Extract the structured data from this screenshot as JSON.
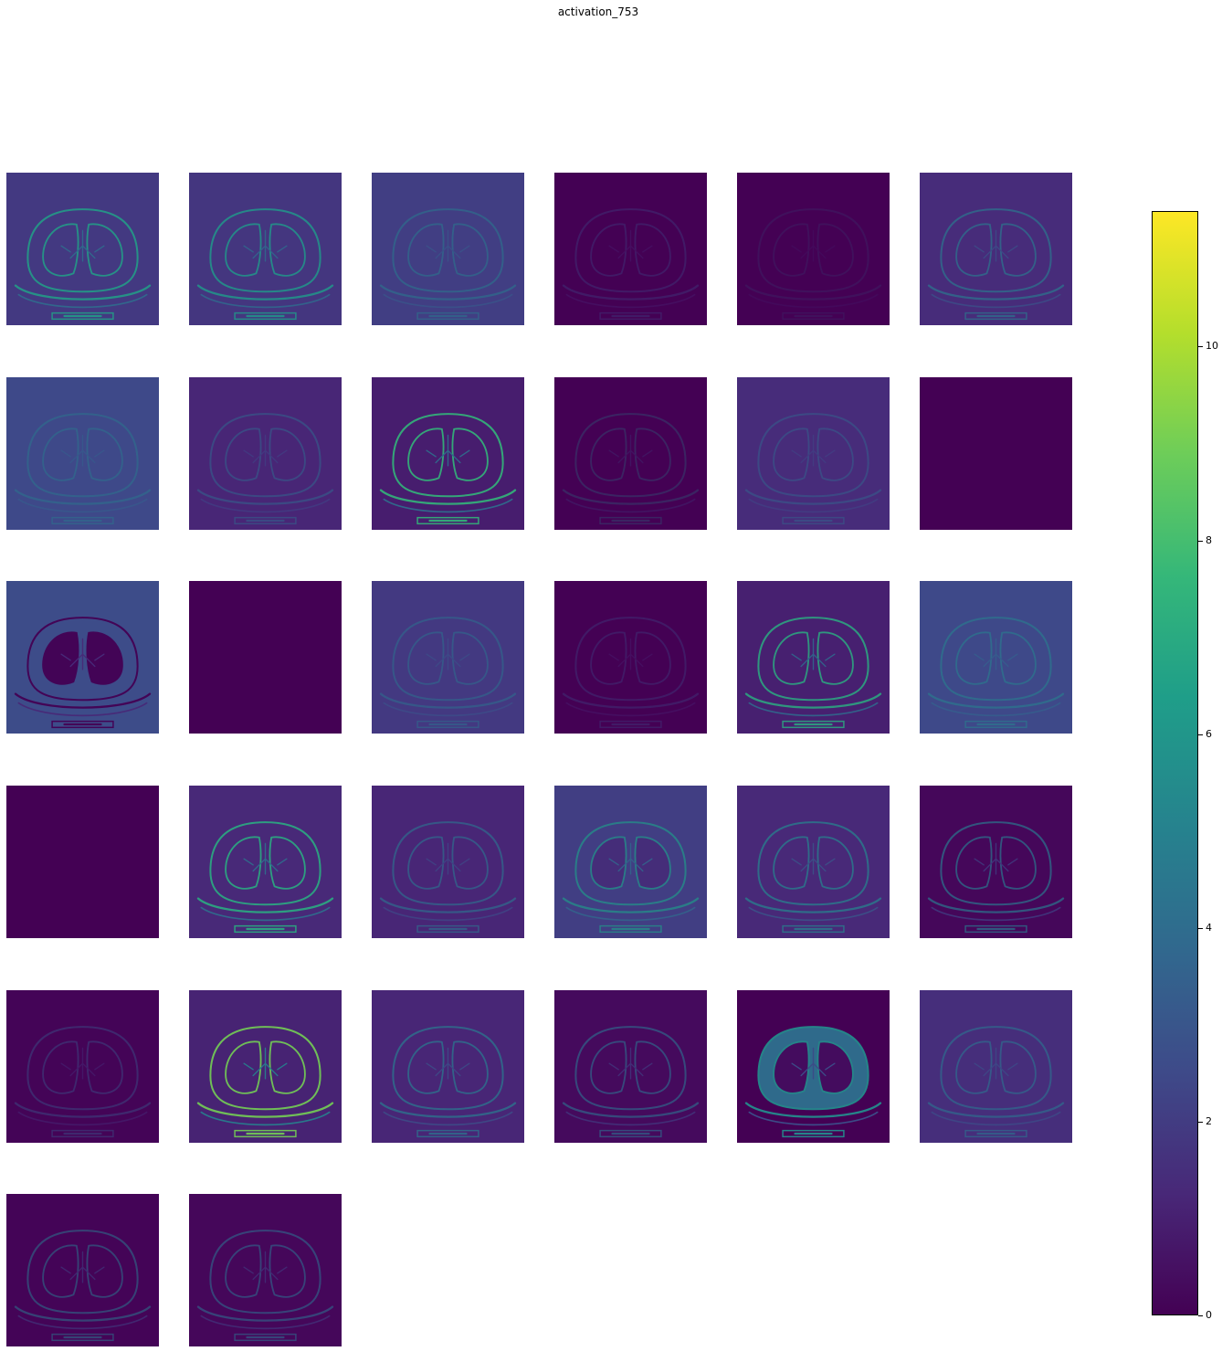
{
  "chart_data": {
    "type": "heatmap",
    "title": "activation_753",
    "layout": {
      "rows": 6,
      "cols": 6,
      "panels": 32
    },
    "colormap": "viridis",
    "colorbar": {
      "range": [
        0,
        11.4
      ],
      "ticks": [
        "0",
        "2",
        "4",
        "6",
        "8",
        "10"
      ],
      "tick_values": [
        0,
        2,
        4,
        6,
        8,
        10
      ]
    },
    "feature_maps": [
      {
        "background": 1.9,
        "edge": 6.5,
        "opacity": 0.85
      },
      {
        "background": 1.8,
        "edge": 6.0,
        "opacity": 0.85
      },
      {
        "background": 2.1,
        "edge": 4.5,
        "opacity": 0.6
      },
      {
        "background": 0.0,
        "edge": 2.5,
        "opacity": 0.35
      },
      {
        "background": 0.0,
        "edge": 4.0,
        "opacity": 0.15
      },
      {
        "background": 1.4,
        "edge": 4.5,
        "opacity": 0.7
      },
      {
        "background": 2.5,
        "edge": 4.5,
        "opacity": 0.55
      },
      {
        "background": 1.2,
        "edge": 3.5,
        "opacity": 0.6
      },
      {
        "background": 0.9,
        "edge": 7.5,
        "opacity": 0.9
      },
      {
        "background": 0.0,
        "edge": 5.5,
        "opacity": 0.25
      },
      {
        "background": 1.4,
        "edge": 3.5,
        "opacity": 0.55
      },
      {
        "background": 0.0,
        "edge": 0.0,
        "opacity": 0.0
      },
      {
        "background": 2.6,
        "edge": 0.0,
        "opacity": 0.95,
        "lung_fill": 0.0
      },
      {
        "background": 0.0,
        "edge": 0.0,
        "opacity": 0.0
      },
      {
        "background": 1.9,
        "edge": 4.0,
        "opacity": 0.6
      },
      {
        "background": 0.0,
        "edge": 2.5,
        "opacity": 0.35
      },
      {
        "background": 1.0,
        "edge": 7.0,
        "opacity": 0.85
      },
      {
        "background": 2.5,
        "edge": 5.0,
        "opacity": 0.6
      },
      {
        "background": 0.0,
        "edge": 0.0,
        "opacity": 0.0
      },
      {
        "background": 1.3,
        "edge": 7.0,
        "opacity": 0.9
      },
      {
        "background": 1.2,
        "edge": 4.0,
        "opacity": 0.7
      },
      {
        "background": 2.1,
        "edge": 6.0,
        "opacity": 0.7,
        "lung_fill": 1.2
      },
      {
        "background": 1.3,
        "edge": 5.0,
        "opacity": 0.75
      },
      {
        "background": 0.2,
        "edge": 4.5,
        "opacity": 0.7
      },
      {
        "background": 0.1,
        "edge": 3.0,
        "opacity": 0.45
      },
      {
        "background": 1.1,
        "edge": 9.0,
        "opacity": 0.9
      },
      {
        "background": 1.2,
        "edge": 4.5,
        "opacity": 0.75
      },
      {
        "background": 0.3,
        "edge": 4.0,
        "opacity": 0.65
      },
      {
        "background": 0.0,
        "edge": 5.5,
        "opacity": 0.95,
        "body_fill": 4.2,
        "lung_fill": 0.4
      },
      {
        "background": 1.5,
        "edge": 4.0,
        "opacity": 0.7
      },
      {
        "background": 0.1,
        "edge": 4.5,
        "opacity": 0.55
      },
      {
        "background": 0.2,
        "edge": 4.0,
        "opacity": 0.6
      }
    ]
  }
}
